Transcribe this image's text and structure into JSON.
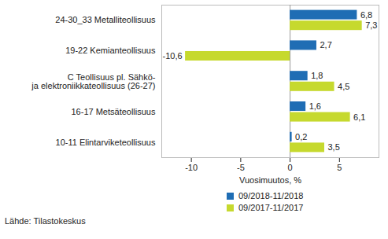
{
  "chart_data": {
    "type": "bar",
    "orientation": "horizontal",
    "categories": [
      "24-30_33 Metalliteollisuus",
      "19-22 Kemianteollisuus",
      "C Teollisuus pl. Sähkö-\nja elektroniikkateollisuus (26-27)",
      "16-17 Metsäteollisuus",
      "10-11 Elintarviketeollisuus"
    ],
    "series": [
      {
        "name": "09/2018-11/2018",
        "color": "#1f6db4",
        "values": [
          6.8,
          2.7,
          1.8,
          1.6,
          0.2
        ],
        "value_labels": [
          "6,8",
          "2,7",
          "1,8",
          "1,6",
          "0,2"
        ]
      },
      {
        "name": "09/2017-11/2017",
        "color": "#c6d92e",
        "values": [
          7.3,
          -10.6,
          4.5,
          6.1,
          3.5
        ],
        "value_labels": [
          "7,3",
          "-10,6",
          "4,5",
          "6,1",
          "3,5"
        ]
      }
    ],
    "x_label": "Vuosimuutos, %",
    "xlim": [
      -13,
      9
    ],
    "xticks": [
      -10,
      -5,
      0,
      5
    ],
    "grid": false,
    "data_labels": true,
    "legend": "bottom",
    "caption": "Lähde: Tilastokeskus"
  }
}
